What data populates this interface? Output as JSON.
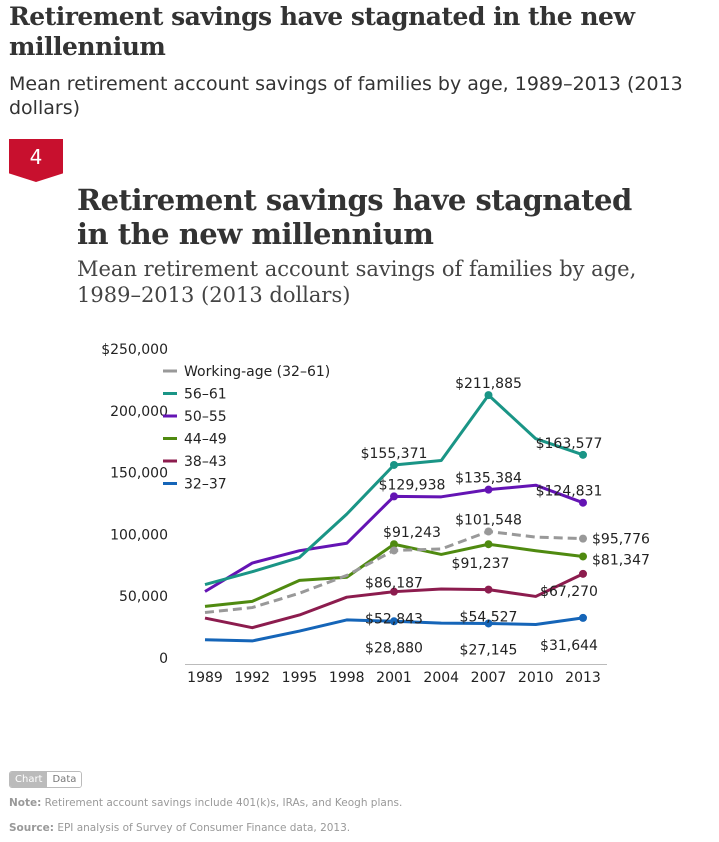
{
  "header": {
    "title": "Retirement savings have stagnated in the new millennium",
    "subtitle": "Mean retirement account savings of families by age, 1989–2013 (2013 dollars)"
  },
  "figure": {
    "number": "4",
    "title": "Retirement savings have stagnated in the new millennium",
    "subtitle": "Mean retirement account savings of families by age, 1989–2013 (2013 dollars)"
  },
  "toggle": {
    "chart": "Chart",
    "data": "Data"
  },
  "note": {
    "label": "Note:",
    "text": " Retirement account savings include 401(k)s, IRAs, and Keogh plans."
  },
  "source": {
    "label": "Source:",
    "text": " EPI analysis of  Survey of Consumer Finance data, 2013."
  },
  "chart_data": {
    "type": "line",
    "x": [
      1989,
      1992,
      1995,
      1998,
      2001,
      2004,
      2007,
      2010,
      2013
    ],
    "ylim": [
      0,
      250000
    ],
    "yticks": [
      0,
      50000,
      100000,
      150000,
      200000,
      250000
    ],
    "ytick_labels": [
      "0",
      "50,000",
      "100,000",
      "150,000",
      "200,000",
      "$250,000"
    ],
    "legend_position": "top-left",
    "grid": false,
    "series": [
      {
        "name": "Working-age (32–61)",
        "color": "#999999",
        "dashed": true,
        "values": [
          36000,
          40000,
          51600,
          66000,
          86187,
          87400,
          101548,
          97000,
          95776
        ],
        "labels": {
          "4": "$86,187",
          "6": "$101,548",
          "8": "$95,776"
        }
      },
      {
        "name": "56–61",
        "color": "#1a9586",
        "values": [
          58600,
          69000,
          80600,
          115600,
          155371,
          159000,
          211885,
          176600,
          163577
        ],
        "labels": {
          "4": "$155,371",
          "6": "$211,885",
          "8": "$163,577"
        }
      },
      {
        "name": "50–55",
        "color": "#6414b4",
        "values": [
          53000,
          76000,
          86000,
          92000,
          129938,
          129600,
          135384,
          139000,
          124831
        ],
        "labels": {
          "4": "$129,938",
          "6": "$135,384",
          "8": "$124,831"
        }
      },
      {
        "name": "44–49",
        "color": "#4f8a10",
        "values": [
          41000,
          45000,
          62000,
          64500,
          91243,
          83000,
          91237,
          86000,
          81347
        ],
        "labels": {
          "4": "$91,243",
          "6": "$91,237",
          "8": "$81,347"
        }
      },
      {
        "name": "38–43",
        "color": "#8c1c4e",
        "values": [
          31500,
          23700,
          34000,
          48400,
          52843,
          55000,
          54527,
          49000,
          67270
        ],
        "labels": {
          "4": "$52,843",
          "6": "$54,527",
          "8": "$67,270"
        }
      },
      {
        "name": "32–37",
        "color": "#1565b8",
        "values": [
          14000,
          13000,
          21000,
          30000,
          28880,
          27400,
          27145,
          26300,
          31644
        ],
        "labels": {
          "4": "$28,880",
          "6": "$27,145",
          "8": "$31,644"
        }
      }
    ]
  }
}
